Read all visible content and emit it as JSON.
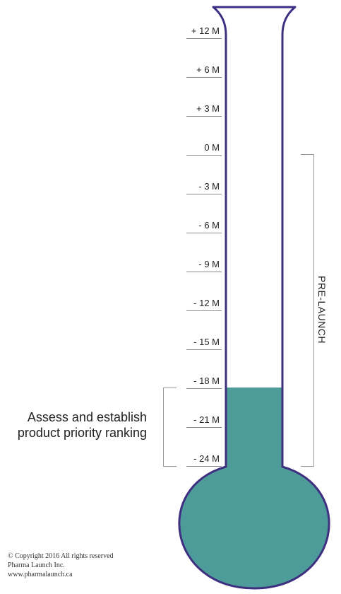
{
  "ticks": [
    "+ 12 M",
    "+ 6 M",
    "+ 3 M",
    "0 M",
    "- 3 M",
    "- 6 M",
    "- 9 M",
    "- 12 M",
    "- 15 M",
    "- 18 M",
    "- 21 M",
    "- 24 M"
  ],
  "phase": {
    "label": "PRE-LAUNCH",
    "from": "0 M",
    "to": "- 24 M"
  },
  "milestone": {
    "label": "Assess and establish product priority ranking",
    "from": "- 18 M",
    "to": "- 24 M"
  },
  "fill_level": "- 18 M",
  "colors": {
    "outline": "#3f2f80",
    "fill": "#4e9c99",
    "bracket": "#9a9a9a"
  },
  "copyright": {
    "line1": "© Copyright 2016 All rights reserved",
    "line2": "Pharma Launch Inc.",
    "line3": "www.pharmalaunch.ca"
  }
}
